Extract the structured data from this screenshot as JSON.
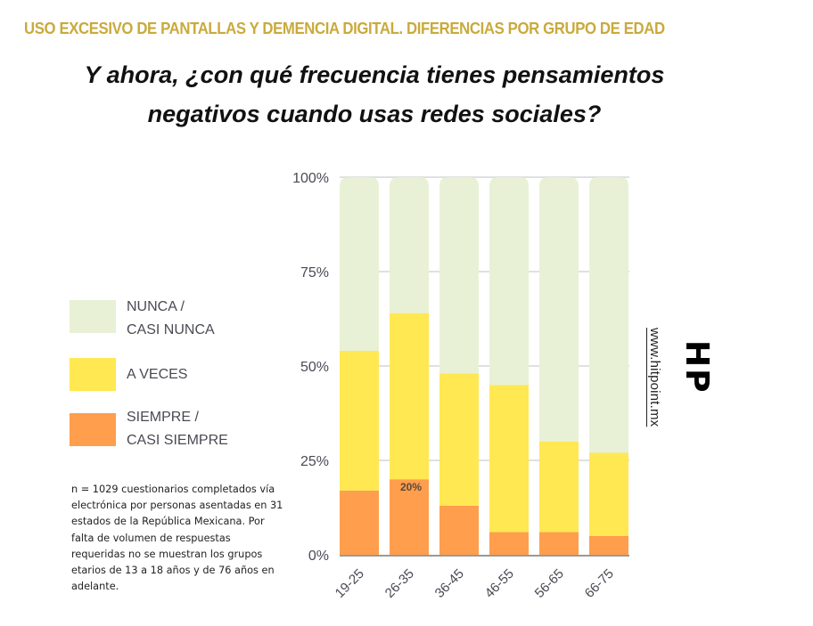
{
  "header": {
    "supertitle": "USO EXCESIVO DE PANTALLAS Y DEMENCIA DIGITAL. DIFERENCIAS POR GRUPO DE EDAD",
    "title_line1": "Y ahora, ¿con qué frecuencia tienes pensamientos",
    "title_line2": "negativos cuando usas redes sociales?"
  },
  "legend": [
    {
      "label_line1": "NUNCA /",
      "label_line2": "CASI NUNCA",
      "color": "#E8F1D6"
    },
    {
      "label_line1": "A VECES",
      "label_line2": "",
      "color": "#FFE852"
    },
    {
      "label_line1": "SIEMPRE /",
      "label_line2": "CASI SIEMPRE",
      "color": "#FF9E4C"
    }
  ],
  "note": "n = 1029 cuestionarios completados vía electrónica por personas asentadas en 31 estados de la República Mexicana. Por falta de volumen de respuestas requeridas no se muestran los grupos etarios de 13 a 18 años y de 76 años en adelante.",
  "watermark": {
    "url": "www.hitpoint.mx",
    "logo": "HP"
  },
  "chart_data": {
    "type": "bar",
    "stacked": true,
    "title": "Y ahora, ¿con qué frecuencia tienes pensamientos negativos cuando usas redes sociales?",
    "xlabel": "",
    "ylabel": "",
    "categories": [
      "19-25",
      "26-35",
      "36-45",
      "46-55",
      "56-65",
      "66-75"
    ],
    "series": [
      {
        "name": "SIEMPRE / CASI SIEMPRE",
        "color": "#FF9E4C",
        "values": [
          17,
          20,
          13,
          6,
          6,
          5
        ]
      },
      {
        "name": "A VECES",
        "color": "#FFE852",
        "values": [
          37,
          44,
          35,
          39,
          24,
          22
        ]
      },
      {
        "name": "NUNCA / CASI NUNCA",
        "color": "#E8F1D6",
        "values": [
          46,
          36,
          52,
          55,
          70,
          73
        ]
      }
    ],
    "data_labels": [
      {
        "category": "26-35",
        "series": "SIEMPRE / CASI SIEMPRE",
        "text": "20%"
      }
    ],
    "ylim": [
      0,
      100
    ],
    "yticks": [
      0,
      25,
      50,
      75,
      100
    ],
    "ytick_labels": [
      "0%",
      "25%",
      "50%",
      "75%",
      "100%"
    ],
    "grid": true,
    "legend_position": "left"
  }
}
